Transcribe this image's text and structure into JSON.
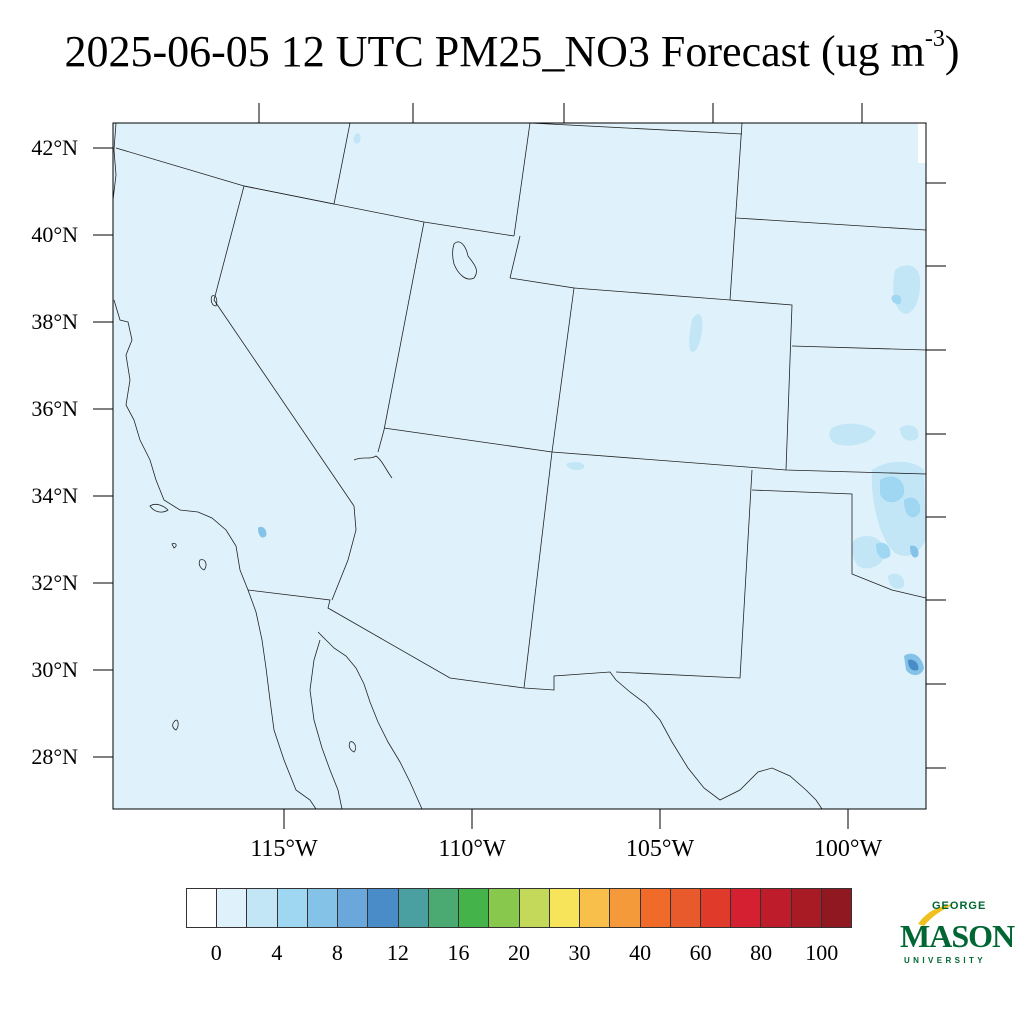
{
  "title": {
    "text": "2025-06-05 12 UTC PM25_NO3 Forecast (ug m",
    "exponent": "-3",
    "suffix": ")"
  },
  "map": {
    "lat_labels": [
      "42°N",
      "40°N",
      "38°N",
      "36°N",
      "34°N",
      "32°N",
      "30°N",
      "28°N"
    ],
    "lon_labels": [
      "115°W",
      "110°W",
      "105°W",
      "100°W"
    ],
    "background_color": "#dff2fb",
    "fill_colors": [
      "#c2e6f6",
      "#9fd6f2",
      "#84c2e8",
      "#4a8cc8"
    ]
  },
  "colorbar": {
    "colors": [
      "#ffffff",
      "#dff2fb",
      "#c2e6f6",
      "#9fd6f2",
      "#84c2e8",
      "#6aa8dc",
      "#4a8cc8",
      "#4aa0a0",
      "#4aaa72",
      "#44b44a",
      "#88c84c",
      "#c4d85a",
      "#f8e45a",
      "#f8c04a",
      "#f49a3a",
      "#f06a2a",
      "#e85a2c",
      "#e03a2a",
      "#d42030",
      "#be1c2a",
      "#a81a24",
      "#901820"
    ],
    "labels": [
      "0",
      "4",
      "8",
      "12",
      "16",
      "20",
      "30",
      "40",
      "60",
      "80",
      "100"
    ]
  },
  "logo": {
    "george": "GEORGE",
    "mason": "MASON",
    "university": "UNIVERSITY"
  }
}
